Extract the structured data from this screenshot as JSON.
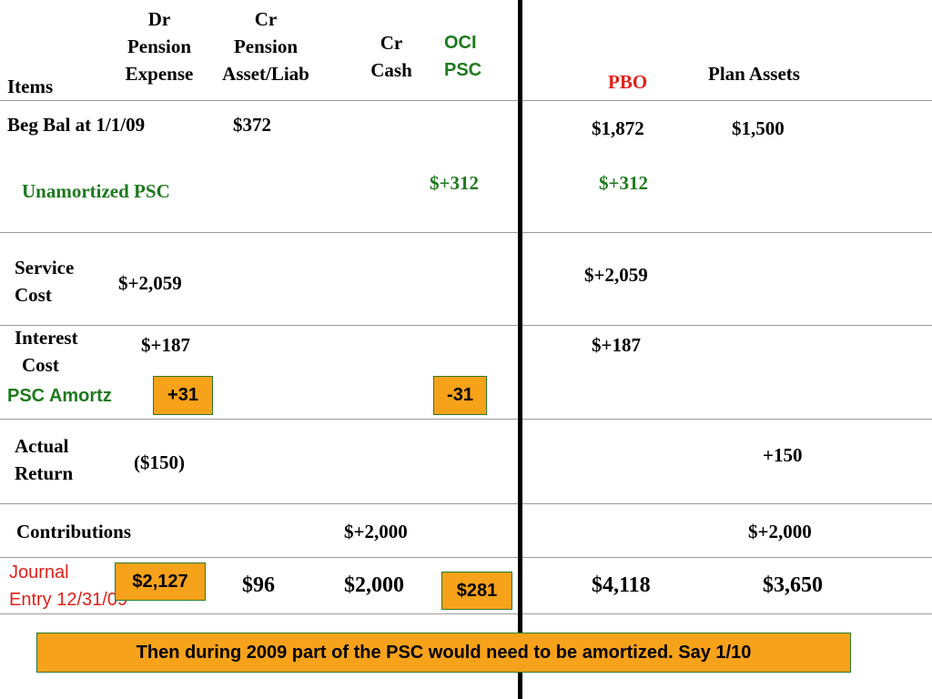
{
  "headers": {
    "items": "Items",
    "dr_pension_expense": [
      "Dr",
      "Pension",
      "Expense"
    ],
    "cr_pension_asset": [
      "Cr",
      "Pension",
      "Asset/Liab"
    ],
    "cr_cash": [
      "Cr",
      "Cash"
    ],
    "oci_psc": [
      "OCI",
      "PSC"
    ],
    "pbo": "PBO",
    "plan_assets": "Plan Assets"
  },
  "rows": {
    "beg_bal": {
      "label": "Beg Bal at 1/1/09",
      "pension_asset": "$372",
      "pbo": "$1,872",
      "plan_assets": "$1,500"
    },
    "psc": {
      "label": "Unamortized PSC",
      "oci": "$+312",
      "pbo": "$+312"
    },
    "service_cost": {
      "label": [
        "Service",
        "Cost"
      ],
      "expense": "$+2,059",
      "pbo": "$+2,059"
    },
    "interest_cost": {
      "label": [
        "Interest",
        "Cost"
      ],
      "expense": "$+187",
      "pbo": "$+187"
    },
    "psc_amortz": {
      "label": "PSC Amortz",
      "expense": "+31",
      "oci": "-31"
    },
    "actual_return": {
      "label": [
        "Actual",
        "Return"
      ],
      "expense": "($150)",
      "plan_assets": "+150"
    },
    "contributions": {
      "label": "Contributions",
      "cash": "$+2,000",
      "plan_assets": "$+2,000"
    },
    "journal_entry": {
      "label": [
        "Journal",
        "Entry 12/31/09"
      ],
      "expense": "$2,127",
      "pension_asset": "$96",
      "cash": "$2,000",
      "oci": "$281",
      "pbo": "$4,118",
      "plan_assets": "$3,650"
    }
  },
  "note": "Then during 2009 part of the PSC would need to be amortized.  Say 1/10",
  "colors": {
    "accent_orange": "#f7a21b",
    "green_text": "#1d7a1d",
    "red_text": "#e0201a",
    "box_border": "#2a7a2a"
  }
}
